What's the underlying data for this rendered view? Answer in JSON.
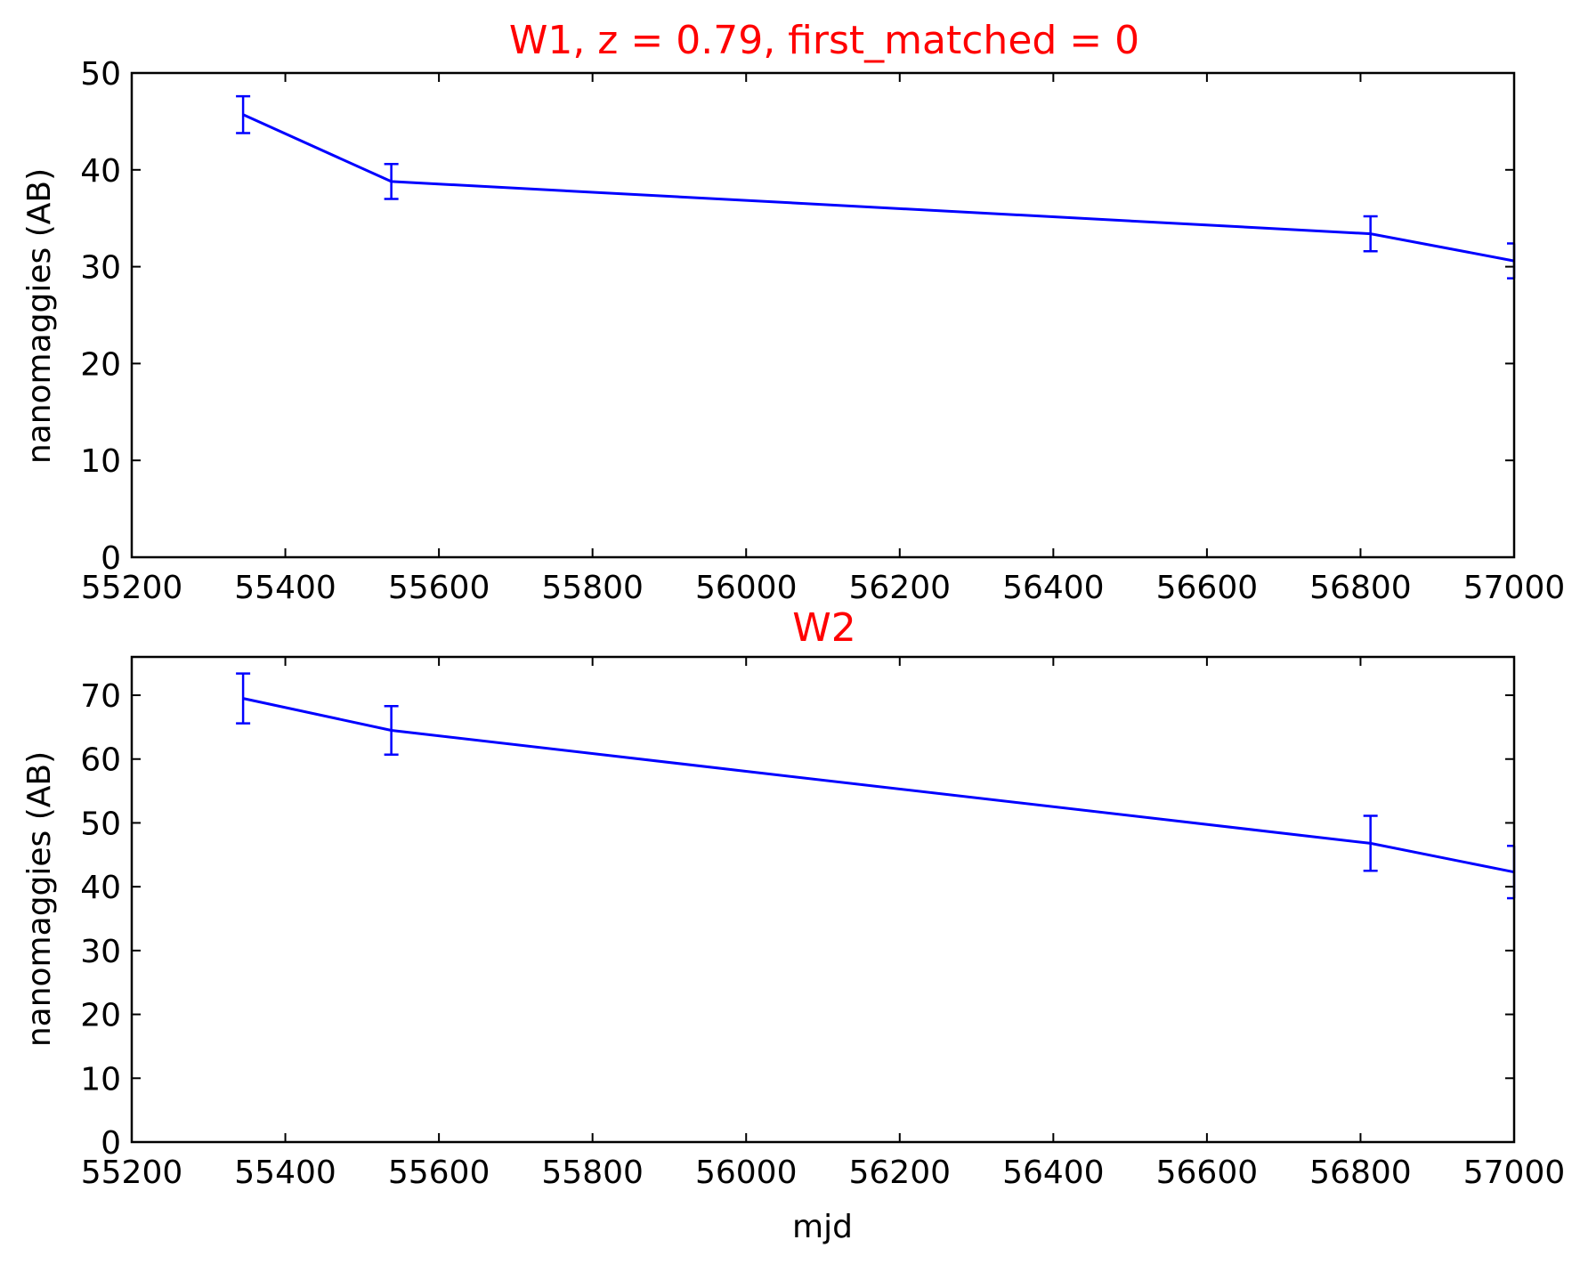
{
  "chart_data": [
    {
      "type": "line",
      "title": "W1, z = 0.79, first_matched = 0",
      "xlabel": "",
      "ylabel": "nanomaggies (AB)",
      "xlim": [
        55200,
        57000
      ],
      "ylim": [
        0,
        50
      ],
      "xticks": [
        "55200",
        "55400",
        "55600",
        "55800",
        "56000",
        "56200",
        "56400",
        "56600",
        "56800",
        "57000"
      ],
      "yticks": [
        "0",
        "10",
        "20",
        "30",
        "40",
        "50"
      ],
      "series": [
        {
          "x": [
            55345,
            55538,
            56813,
            57000
          ],
          "y": [
            45.7,
            38.8,
            33.4,
            30.6
          ],
          "yerr": [
            1.9,
            1.8,
            1.8,
            1.8
          ]
        }
      ]
    },
    {
      "type": "line",
      "title": "W2",
      "xlabel": "mjd",
      "ylabel": "nanomaggies (AB)",
      "xlim": [
        55200,
        57000
      ],
      "ylim": [
        0,
        76
      ],
      "xticks": [
        "55200",
        "55400",
        "55600",
        "55800",
        "56000",
        "56200",
        "56400",
        "56600",
        "56800",
        "57000"
      ],
      "yticks": [
        "0",
        "10",
        "20",
        "30",
        "40",
        "50",
        "60",
        "70"
      ],
      "series": [
        {
          "x": [
            55345,
            55538,
            56813,
            57000
          ],
          "y": [
            69.5,
            64.5,
            46.8,
            42.3
          ],
          "yerr": [
            3.9,
            3.8,
            4.3,
            4.1
          ]
        }
      ]
    }
  ],
  "colors": {
    "series": "#0000ff",
    "title": "#ff0000",
    "axes": "#000000"
  }
}
